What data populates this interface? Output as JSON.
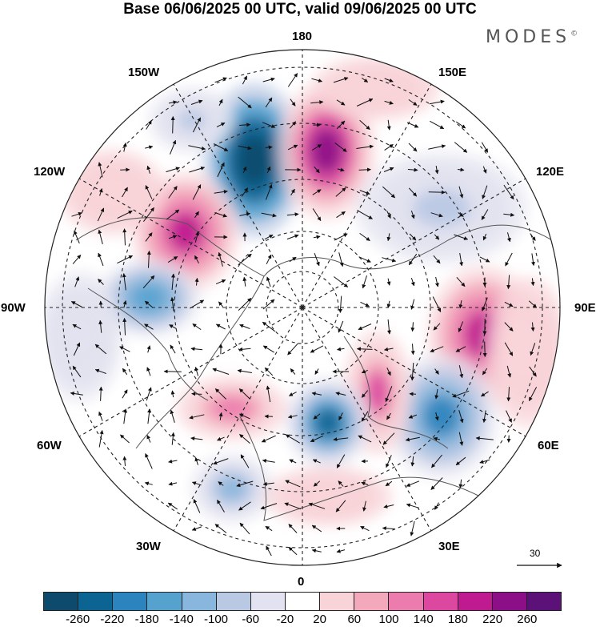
{
  "title": "Base 06/06/2025 00 UTC, valid 09/06/2025 00 UTC",
  "brand": {
    "name": "MODES",
    "mark": "©"
  },
  "longitude_labels": {
    "lon_180": "180",
    "lon_150e": "150E",
    "lon_120e": "120E",
    "lon_90e": "90E",
    "lon_60e": "60E",
    "lon_30e": "30E",
    "lon_0": "0",
    "lon_30w": "30W",
    "lon_60w": "60W",
    "lon_90w": "90W",
    "lon_120w": "120W",
    "lon_150w": "150W"
  },
  "reference_vector": {
    "value": "30"
  },
  "colorbar": {
    "colors": [
      "#0d4a6b",
      "#0c6493",
      "#2b84bd",
      "#55a2cf",
      "#88b6dc",
      "#b9c8e3",
      "#e2e2f0",
      "#ffffff",
      "#f8d4d8",
      "#f3a9bb",
      "#ec7cae",
      "#dc48a0",
      "#bf1a8f",
      "#8c0f87",
      "#5c1179"
    ],
    "ticks": [
      "-260",
      "-220",
      "-180",
      "-140",
      "-100",
      "-60",
      "-20",
      "20",
      "60",
      "100",
      "140",
      "180",
      "220",
      "260"
    ]
  }
}
